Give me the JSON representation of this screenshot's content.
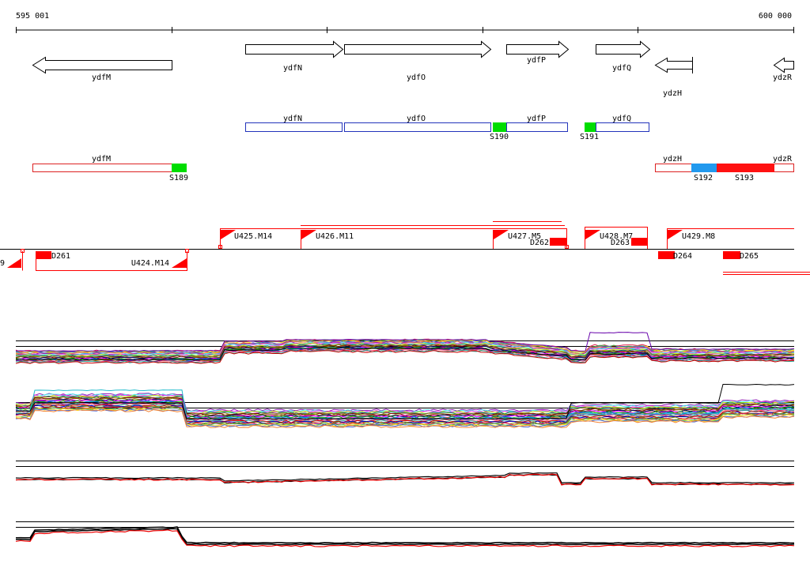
{
  "ruler": {
    "start_label": "595 001",
    "end_label": "600 000"
  },
  "genes": [
    {
      "name": "ydfM",
      "strand": "-"
    },
    {
      "name": "ydfN",
      "strand": "+"
    },
    {
      "name": "ydfO",
      "strand": "+"
    },
    {
      "name": "ydfP",
      "strand": "+"
    },
    {
      "name": "ydfQ",
      "strand": "+"
    },
    {
      "name": "ydzH",
      "strand": "-"
    },
    {
      "name": "ydzR",
      "strand": "-"
    }
  ],
  "transcripts": [
    {
      "genes": "ydfN",
      "strand": "+"
    },
    {
      "genes": "ydfO",
      "strand": "+"
    },
    {
      "genes": "ydfP",
      "strand": "+"
    },
    {
      "genes": "ydfQ",
      "strand": "+"
    },
    {
      "genes": "ydfM",
      "strand": "-"
    },
    {
      "genes": "ydzH",
      "strand": "-"
    },
    {
      "genes": "ydzR",
      "strand": "-"
    }
  ],
  "sites": [
    {
      "label": "S189",
      "color": "#00dd00"
    },
    {
      "label": "S190",
      "color": "#00dd00"
    },
    {
      "label": "S191",
      "color": "#00dd00"
    },
    {
      "label": "S192",
      "color": "#2299ee"
    },
    {
      "label": "S193",
      "color": "#ff1111"
    }
  ],
  "segments": {
    "up": [
      "U425.M14",
      "U426.M11",
      "U427.M5",
      "U428.M7",
      "U429.M8"
    ],
    "down": [
      "U424.M14"
    ],
    "partial": "9"
  },
  "downshifts": [
    "D261",
    "D262",
    "D263",
    "D264",
    "D265"
  ],
  "colors": {
    "gene_outline": "#000000",
    "transcript_plus": "#2233bb",
    "transcript_minus": "#dd2222",
    "marker_red": "#ff0000"
  },
  "panels": [
    {
      "name": "all-conditions-plus",
      "note": "many colored expression tracks"
    },
    {
      "name": "all-conditions-minus",
      "note": "many colored expression tracks"
    },
    {
      "name": "summary-plus",
      "note": "black and red tracks"
    },
    {
      "name": "summary-minus",
      "note": "black and red tracks"
    }
  ]
}
